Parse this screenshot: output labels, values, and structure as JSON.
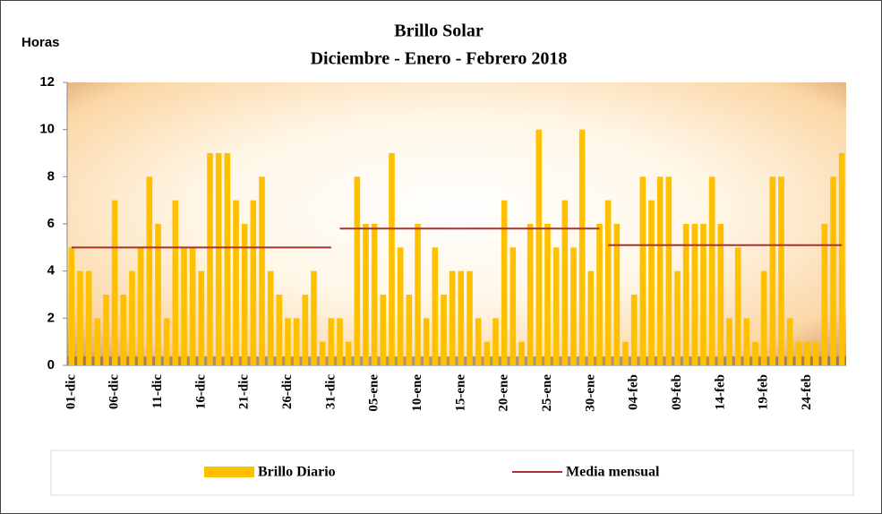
{
  "chart_data": {
    "type": "bar",
    "title": "Brillo Solar",
    "subtitle": "Diciembre - Enero - Febrero 2018",
    "y_label": "Horas",
    "categories": [
      "01-dic",
      null,
      null,
      null,
      null,
      "06-dic",
      null,
      null,
      null,
      null,
      "11-dic",
      null,
      null,
      null,
      null,
      "16-dic",
      null,
      null,
      null,
      null,
      "21-dic",
      null,
      null,
      null,
      null,
      "26-dic",
      null,
      null,
      null,
      null,
      "31-dic",
      null,
      null,
      null,
      null,
      "05-ene",
      null,
      null,
      null,
      null,
      "10-ene",
      null,
      null,
      null,
      null,
      "15-ene",
      null,
      null,
      null,
      null,
      "20-ene",
      null,
      null,
      null,
      null,
      "25-ene",
      null,
      null,
      null,
      null,
      "30-ene",
      null,
      null,
      null,
      null,
      "04-feb",
      null,
      null,
      null,
      null,
      "09-feb",
      null,
      null,
      null,
      null,
      "14-feb",
      null,
      null,
      null,
      null,
      "19-feb",
      null,
      null,
      null,
      null,
      "24-feb",
      null,
      null,
      null,
      null
    ],
    "series": [
      {
        "name": "Brillo Diario",
        "color": "#ffc000",
        "type": "bar",
        "values": [
          5,
          4,
          4,
          2,
          3,
          7,
          3,
          4,
          5,
          8,
          6,
          2,
          7,
          5,
          5,
          4,
          9,
          9,
          9,
          7,
          6,
          7,
          8,
          4,
          3,
          2,
          2,
          3,
          4,
          1,
          2,
          2,
          1,
          8,
          6,
          6,
          3,
          9,
          5,
          3,
          6,
          2,
          5,
          3,
          4,
          4,
          4,
          2,
          1,
          2,
          7,
          5,
          1,
          6,
          10,
          6,
          5,
          7,
          5,
          10,
          4,
          6,
          7,
          6,
          1,
          3,
          8,
          7,
          8,
          8,
          4,
          6,
          6,
          6,
          8,
          6,
          2,
          5,
          2,
          1,
          4,
          8,
          8,
          2,
          1,
          1,
          1,
          6,
          8,
          9
        ]
      },
      {
        "name": "Media mensual",
        "color": "#a8322d",
        "type": "line",
        "values": [
          5,
          5,
          5,
          5,
          5,
          5,
          5,
          5,
          5,
          5,
          5,
          5,
          5,
          5,
          5,
          5,
          5,
          5,
          5,
          5,
          5,
          5,
          5,
          5,
          5,
          5,
          5,
          5,
          5,
          5,
          5,
          5.8,
          5.8,
          5.8,
          5.8,
          5.8,
          5.8,
          5.8,
          5.8,
          5.8,
          5.8,
          5.8,
          5.8,
          5.8,
          5.8,
          5.8,
          5.8,
          5.8,
          5.8,
          5.8,
          5.8,
          5.8,
          5.8,
          5.8,
          5.8,
          5.8,
          5.8,
          5.8,
          5.8,
          5.8,
          5.8,
          5.8,
          5.1,
          5.1,
          5.1,
          5.1,
          5.1,
          5.1,
          5.1,
          5.1,
          5.1,
          5.1,
          5.1,
          5.1,
          5.1,
          5.1,
          5.1,
          5.1,
          5.1,
          5.1,
          5.1,
          5.1,
          5.1,
          5.1,
          5.1,
          5.1,
          5.1,
          5.1,
          5.1,
          5.1
        ]
      }
    ],
    "ylim": [
      0,
      12
    ],
    "yticks": [
      0,
      2,
      4,
      6,
      8,
      10,
      12
    ]
  }
}
